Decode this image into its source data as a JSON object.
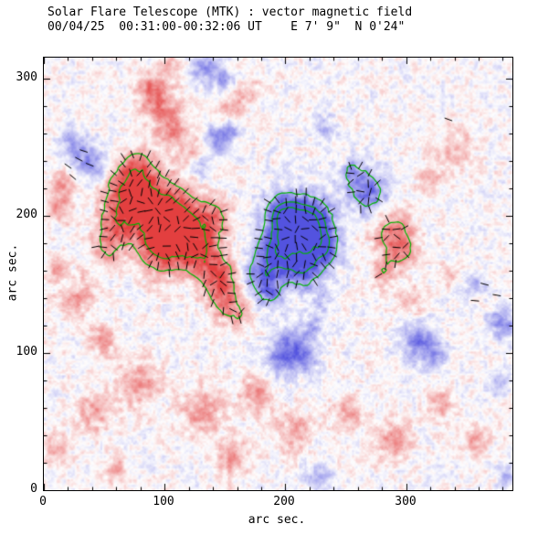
{
  "title": {
    "line1": "Solar Flare Telescope (MTK) : vector magnetic field",
    "line2": "00/04/25  00:31:00-00:32:06 UT    E 7' 9\"  N 0'24\""
  },
  "axes": {
    "xlabel": "arc sec.",
    "ylabel": "arc sec.",
    "x_ticks": [
      "0",
      "100",
      "200",
      "300"
    ],
    "y_ticks": [
      "0",
      "100",
      "200",
      "300"
    ]
  },
  "chart_data": {
    "type": "heatmap",
    "title": "Solar Flare Telescope (MTK) : vector magnetic field",
    "subtitle": "00/04/25  00:31:00-00:32:06 UT    E 7' 9\"  N 0'24\"",
    "xlabel": "arc sec.",
    "ylabel": "arc sec.",
    "xlim": [
      0,
      388
    ],
    "ylim": [
      0,
      315
    ],
    "xticks": [
      0,
      100,
      200,
      300
    ],
    "yticks": [
      0,
      100,
      200,
      300
    ],
    "minor_tick_step": 20,
    "colormap": {
      "positive": "#e14040",
      "negative": "#5353dc",
      "zero": "#ffffff"
    },
    "contour_color": "#00b400",
    "contour_levels": [
      0.5,
      1.0,
      -0.5,
      -1.0,
      -1.35
    ],
    "vector_color": "#000000",
    "vector_grid_spacing": 10,
    "vector_threshold": 0.35,
    "noise_amplitude": 0.22,
    "noise_seed": 7.31,
    "regions": [
      {
        "x": 93,
        "y": 205,
        "r": 18,
        "s": 1.0,
        "p": 1,
        "vec": true
      },
      {
        "x": 70,
        "y": 220,
        "r": 13,
        "s": 0.8,
        "p": 1,
        "vec": true
      },
      {
        "x": 113,
        "y": 192,
        "r": 14,
        "s": 0.9,
        "p": 1,
        "vec": true
      },
      {
        "x": 130,
        "y": 172,
        "r": 12,
        "s": 0.8,
        "p": 1,
        "vec": true
      },
      {
        "x": 96,
        "y": 176,
        "r": 13,
        "s": 0.85,
        "p": 1,
        "vec": true
      },
      {
        "x": 60,
        "y": 196,
        "r": 11,
        "s": 0.7,
        "p": 1,
        "vec": true
      },
      {
        "x": 146,
        "y": 153,
        "r": 11,
        "s": 0.8,
        "p": 1,
        "vec": true
      },
      {
        "x": 140,
        "y": 198,
        "r": 10,
        "s": 0.6,
        "p": 1,
        "vec": true
      },
      {
        "x": 78,
        "y": 238,
        "r": 9,
        "s": 0.5,
        "p": 1,
        "vec": true
      },
      {
        "x": 52,
        "y": 176,
        "r": 9,
        "s": 0.5,
        "p": 1,
        "vec": true
      },
      {
        "x": 150,
        "y": 135,
        "r": 8,
        "s": 0.5,
        "p": 1,
        "vec": true
      },
      {
        "x": 163,
        "y": 128,
        "r": 7,
        "s": 0.45,
        "p": 1,
        "vec": true
      },
      {
        "x": 287,
        "y": 190,
        "r": 12,
        "s": 0.6,
        "p": 1,
        "vec": true
      },
      {
        "x": 297,
        "y": 175,
        "r": 9,
        "s": 0.5,
        "p": 1,
        "vec": true
      },
      {
        "x": 281,
        "y": 159,
        "r": 8,
        "s": 0.45,
        "p": 1,
        "vec": true
      },
      {
        "x": 208,
        "y": 187,
        "r": 16,
        "s": 1.05,
        "p": -1,
        "vec": true
      },
      {
        "x": 222,
        "y": 197,
        "r": 12,
        "s": 0.85,
        "p": -1,
        "vec": true
      },
      {
        "x": 193,
        "y": 171,
        "r": 12,
        "s": 0.8,
        "p": -1,
        "vec": true
      },
      {
        "x": 232,
        "y": 177,
        "r": 10,
        "s": 0.7,
        "p": -1,
        "vec": true
      },
      {
        "x": 198,
        "y": 202,
        "r": 10,
        "s": 0.8,
        "p": -1,
        "vec": true
      },
      {
        "x": 178,
        "y": 156,
        "r": 10,
        "s": 0.6,
        "p": -1,
        "vec": true
      },
      {
        "x": 216,
        "y": 160,
        "r": 10,
        "s": 0.7,
        "p": -1,
        "vec": true
      },
      {
        "x": 187,
        "y": 143,
        "r": 8,
        "s": 0.5,
        "p": -1,
        "vec": true
      },
      {
        "x": 270,
        "y": 216,
        "r": 12,
        "s": 0.75,
        "p": -1,
        "vec": true
      },
      {
        "x": 256,
        "y": 231,
        "r": 8,
        "s": 0.5,
        "p": -1,
        "vec": true
      },
      {
        "x": 95,
        "y": 281,
        "r": 11,
        "s": 0.6,
        "p": 1,
        "vec": false
      },
      {
        "x": 106,
        "y": 263,
        "r": 8,
        "s": 0.55,
        "p": 1,
        "vec": false
      },
      {
        "x": 87,
        "y": 294,
        "r": 7,
        "s": 0.5,
        "p": 1,
        "vec": false
      },
      {
        "x": 123,
        "y": 248,
        "r": 7,
        "s": 0.4,
        "p": 1,
        "vec": false
      },
      {
        "x": 155,
        "y": 278,
        "r": 7,
        "s": 0.5,
        "p": 1,
        "vec": false
      },
      {
        "x": 170,
        "y": 291,
        "r": 6,
        "s": 0.4,
        "p": 1,
        "vec": false
      },
      {
        "x": 101,
        "y": 308,
        "r": 6,
        "s": 0.4,
        "p": 1,
        "vec": false
      },
      {
        "x": 143,
        "y": 256,
        "r": 7,
        "s": 0.65,
        "p": -1,
        "vec": false
      },
      {
        "x": 154,
        "y": 263,
        "r": 6,
        "s": 0.5,
        "p": -1,
        "vec": false
      },
      {
        "x": 128,
        "y": 237,
        "r": 6,
        "s": 0.4,
        "p": -1,
        "vec": false
      },
      {
        "x": 132,
        "y": 308,
        "r": 8,
        "s": 0.55,
        "p": -1,
        "vec": false
      },
      {
        "x": 148,
        "y": 300,
        "r": 6,
        "s": 0.45,
        "p": -1,
        "vec": false
      },
      {
        "x": 233,
        "y": 265,
        "r": 6,
        "s": 0.35,
        "p": -1,
        "vec": false
      },
      {
        "x": 35,
        "y": 243,
        "r": 9,
        "s": 0.55,
        "p": -1,
        "vec": false
      },
      {
        "x": 22,
        "y": 253,
        "r": 7,
        "s": 0.45,
        "p": -1,
        "vec": false
      },
      {
        "x": 45,
        "y": 232,
        "r": 6,
        "s": 0.4,
        "p": -1,
        "vec": false
      },
      {
        "x": 12,
        "y": 207,
        "r": 8,
        "s": 0.5,
        "p": 1,
        "vec": false
      },
      {
        "x": 15,
        "y": 224,
        "r": 6,
        "s": 0.45,
        "p": 1,
        "vec": false
      },
      {
        "x": 25,
        "y": 143,
        "r": 10,
        "s": 0.5,
        "p": 1,
        "vec": false
      },
      {
        "x": 10,
        "y": 160,
        "r": 6,
        "s": 0.4,
        "p": 1,
        "vec": false
      },
      {
        "x": 48,
        "y": 110,
        "r": 8,
        "s": 0.45,
        "p": 1,
        "vec": false
      },
      {
        "x": 205,
        "y": 105,
        "r": 10,
        "s": 0.65,
        "p": -1,
        "vec": false
      },
      {
        "x": 195,
        "y": 93,
        "r": 8,
        "s": 0.55,
        "p": -1,
        "vec": false
      },
      {
        "x": 216,
        "y": 96,
        "r": 7,
        "s": 0.5,
        "p": -1,
        "vec": false
      },
      {
        "x": 222,
        "y": 120,
        "r": 6,
        "s": 0.4,
        "p": -1,
        "vec": false
      },
      {
        "x": 229,
        "y": 137,
        "r": 6,
        "s": 0.35,
        "p": -1,
        "vec": false
      },
      {
        "x": 18,
        "y": 150,
        "r": 6,
        "s": 0.35,
        "p": -1,
        "vec": false
      },
      {
        "x": 310,
        "y": 108,
        "r": 10,
        "s": 0.65,
        "p": -1,
        "vec": false
      },
      {
        "x": 324,
        "y": 99,
        "r": 7,
        "s": 0.5,
        "p": -1,
        "vec": false
      },
      {
        "x": 380,
        "y": 122,
        "r": 8,
        "s": 0.6,
        "p": -1,
        "vec": false
      },
      {
        "x": 358,
        "y": 150,
        "r": 6,
        "s": 0.45,
        "p": -1,
        "vec": false
      },
      {
        "x": 377,
        "y": 77,
        "r": 6,
        "s": 0.4,
        "p": -1,
        "vec": false
      },
      {
        "x": 384,
        "y": 10,
        "r": 6,
        "s": 0.4,
        "p": -1,
        "vec": false
      },
      {
        "x": 229,
        "y": 10,
        "r": 8,
        "s": 0.38,
        "p": -1,
        "vec": false
      },
      {
        "x": 78,
        "y": 77,
        "r": 12,
        "s": 0.5,
        "p": 1,
        "vec": false
      },
      {
        "x": 40,
        "y": 57,
        "r": 10,
        "s": 0.45,
        "p": 1,
        "vec": false
      },
      {
        "x": 130,
        "y": 57,
        "r": 12,
        "s": 0.5,
        "p": 1,
        "vec": false
      },
      {
        "x": 176,
        "y": 70,
        "r": 10,
        "s": 0.5,
        "p": 1,
        "vec": false
      },
      {
        "x": 207,
        "y": 43,
        "r": 10,
        "s": 0.45,
        "p": 1,
        "vec": false
      },
      {
        "x": 154,
        "y": 23,
        "r": 10,
        "s": 0.45,
        "p": 1,
        "vec": false
      },
      {
        "x": 252,
        "y": 57,
        "r": 9,
        "s": 0.45,
        "p": 1,
        "vec": false
      },
      {
        "x": 290,
        "y": 37,
        "r": 10,
        "s": 0.5,
        "p": 1,
        "vec": false
      },
      {
        "x": 328,
        "y": 63,
        "r": 8,
        "s": 0.45,
        "p": 1,
        "vec": false
      },
      {
        "x": 358,
        "y": 37,
        "r": 8,
        "s": 0.4,
        "p": 1,
        "vec": false
      },
      {
        "x": 10,
        "y": 30,
        "r": 8,
        "s": 0.4,
        "p": 1,
        "vec": false
      },
      {
        "x": 60,
        "y": 15,
        "r": 7,
        "s": 0.4,
        "p": 1,
        "vec": false
      },
      {
        "x": 340,
        "y": 250,
        "r": 12,
        "s": 0.32,
        "p": 1,
        "vec": false
      },
      {
        "x": 318,
        "y": 228,
        "r": 8,
        "s": 0.3,
        "p": 1,
        "vec": false
      },
      {
        "x": 335,
        "y": 157,
        "r": 6,
        "s": 0.35,
        "p": 1,
        "vec": false
      },
      {
        "x": 305,
        "y": 140,
        "r": 8,
        "s": 0.35,
        "p": 1,
        "vec": false
      }
    ],
    "extra_vectors": [
      {
        "x": 20,
        "y": 236,
        "a": -35
      },
      {
        "x": 29,
        "y": 241,
        "a": -28
      },
      {
        "x": 38,
        "y": 237,
        "a": -22
      },
      {
        "x": 24,
        "y": 228,
        "a": -40
      },
      {
        "x": 33,
        "y": 247,
        "a": -18
      },
      {
        "x": 365,
        "y": 150,
        "a": -15
      },
      {
        "x": 375,
        "y": 142,
        "a": -10
      },
      {
        "x": 357,
        "y": 138,
        "a": -5
      },
      {
        "x": 335,
        "y": 270,
        "a": -20
      }
    ]
  }
}
